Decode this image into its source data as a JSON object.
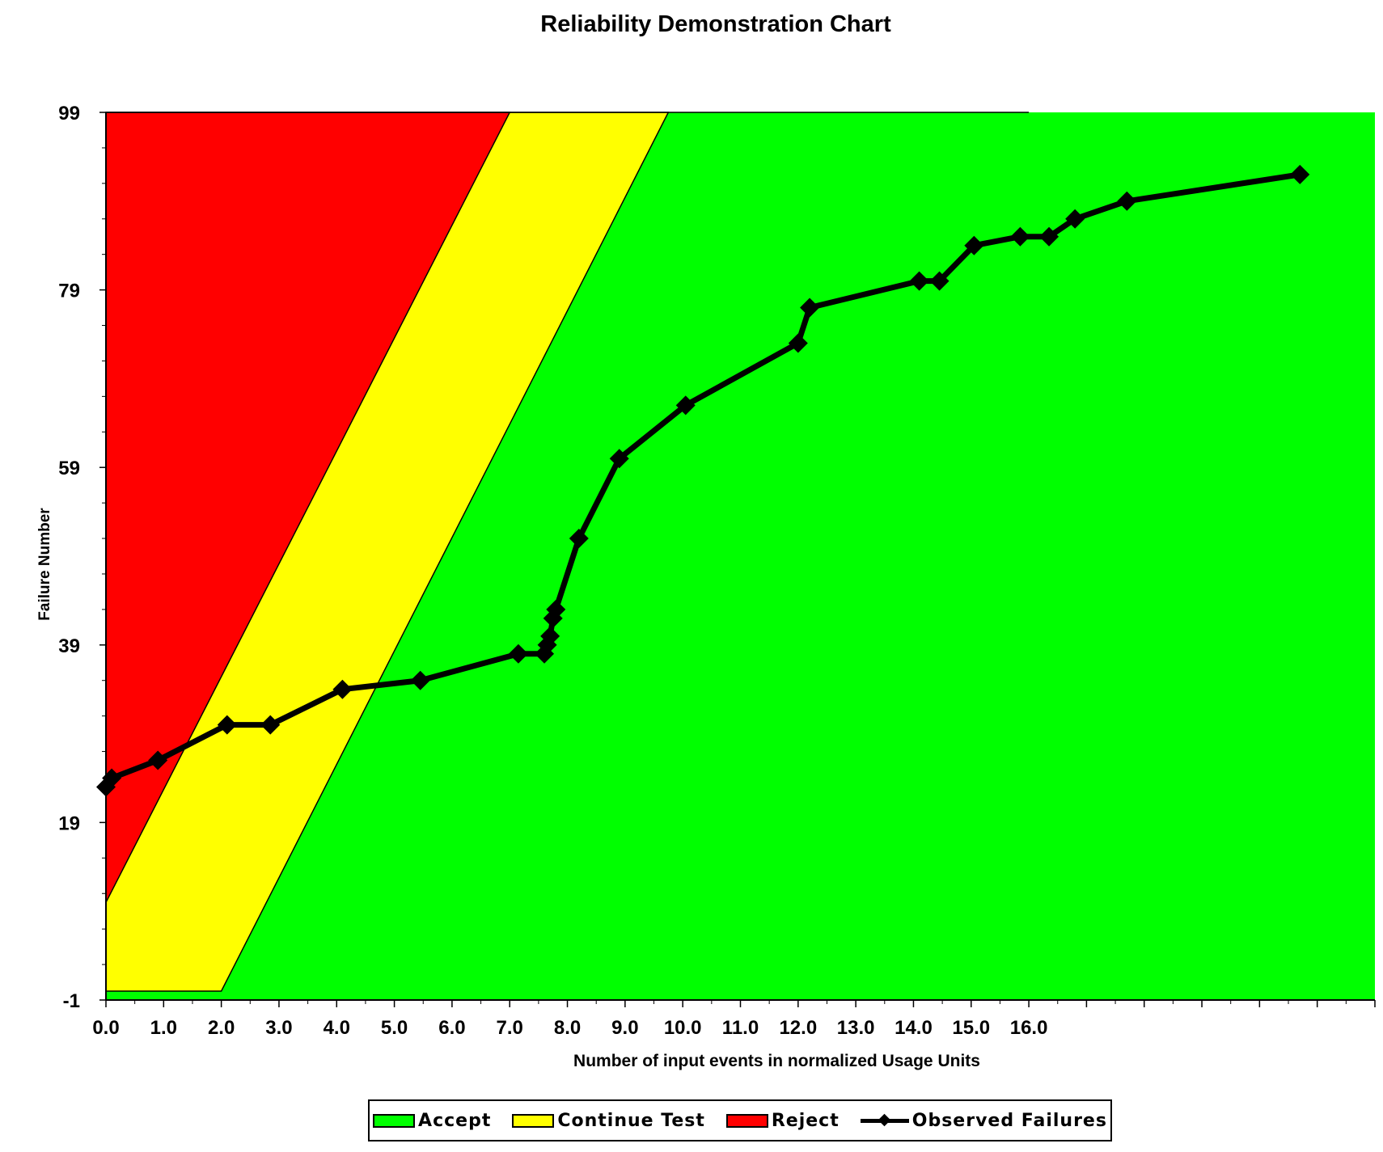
{
  "chart_data": {
    "type": "line",
    "title": "Reliability Demonstration Chart",
    "xlabel": "Number of input events in normalized Usage Units",
    "ylabel": "Failure Number",
    "xlim": [
      0,
      22
    ],
    "ylim": [
      -1,
      99
    ],
    "x_ticks": [
      0,
      1,
      2,
      3,
      4,
      5,
      6,
      7,
      8,
      9,
      10,
      11,
      12,
      13,
      14,
      15,
      16
    ],
    "x_tick_labels": [
      "0.0",
      "1.0",
      "2.0",
      "3.0",
      "4.0",
      "5.0",
      "6.0",
      "7.0",
      "8.0",
      "9.0",
      "10.0",
      "11.0",
      "12.0",
      "13.0",
      "14.0",
      "15.0",
      "16.0"
    ],
    "y_ticks": [
      99,
      79,
      59,
      39,
      19,
      -1
    ],
    "y_tick_labels": [
      "99",
      "79",
      "59",
      "39",
      "19",
      "-1"
    ],
    "grid": false,
    "legend_position": "bottom",
    "regions": [
      {
        "name": "Reject",
        "color": "#ff0000",
        "boundary": [
          [
            0,
            10
          ],
          [
            7,
            99
          ]
        ]
      },
      {
        "name": "Continue Test",
        "color": "#ffff00",
        "boundary": [
          [
            0,
            0
          ],
          [
            2,
            0
          ],
          [
            9.75,
            99
          ]
        ]
      },
      {
        "name": "Accept",
        "color": "#00ff00"
      }
    ],
    "series": [
      {
        "name": "Observed Failures",
        "color": "#000000",
        "points": [
          [
            0.0,
            23
          ],
          [
            0.1,
            24
          ],
          [
            0.9,
            26
          ],
          [
            2.1,
            30
          ],
          [
            2.85,
            30
          ],
          [
            4.1,
            34
          ],
          [
            5.45,
            35
          ],
          [
            7.15,
            38
          ],
          [
            7.6,
            38
          ],
          [
            7.65,
            39
          ],
          [
            7.7,
            40
          ],
          [
            7.75,
            42
          ],
          [
            7.8,
            43
          ],
          [
            8.2,
            51
          ],
          [
            8.9,
            60
          ],
          [
            10.05,
            66
          ],
          [
            12.0,
            73
          ],
          [
            12.2,
            77
          ],
          [
            14.1,
            80
          ],
          [
            14.45,
            80
          ],
          [
            15.05,
            84
          ],
          [
            15.85,
            85
          ],
          [
            16.35,
            85
          ],
          [
            16.8,
            87
          ],
          [
            17.7,
            89
          ],
          [
            20.7,
            92
          ]
        ]
      }
    ]
  },
  "legend": {
    "items": [
      {
        "label": "Accept",
        "color": "#00ff00"
      },
      {
        "label": "Continue Test",
        "color": "#ffff00"
      },
      {
        "label": "Reject",
        "color": "#ff0000"
      },
      {
        "label": "Observed Failures",
        "color": "#000000"
      }
    ]
  }
}
